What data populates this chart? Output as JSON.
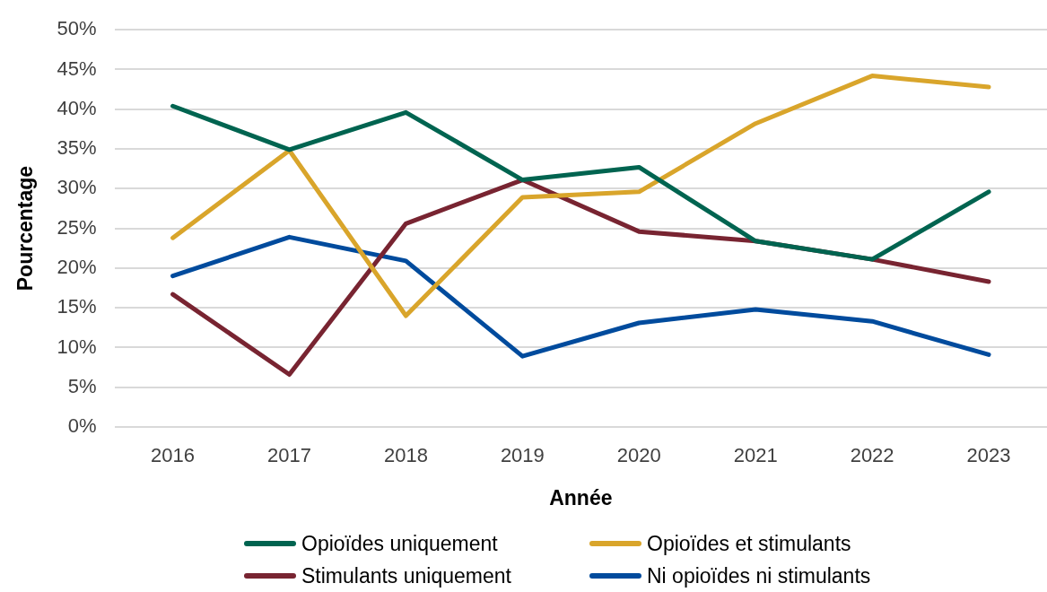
{
  "chart_data": {
    "type": "line",
    "xlabel": "Année",
    "ylabel": "Pourcentage",
    "categories": [
      "2016",
      "2017",
      "2018",
      "2019",
      "2020",
      "2021",
      "2022",
      "2023"
    ],
    "series": [
      {
        "name": "Opioïdes uniquement",
        "color": "#006450",
        "values": [
          40.4,
          34.9,
          39.6,
          31.1,
          32.7,
          23.4,
          21.1,
          29.6
        ]
      },
      {
        "name": "Opioïdes et stimulants",
        "color": "#d9a52b",
        "values": [
          23.8,
          34.8,
          14.0,
          28.9,
          29.6,
          38.2,
          44.2,
          42.8
        ]
      },
      {
        "name": "Stimulants uniquement",
        "color": "#782431",
        "values": [
          16.7,
          6.6,
          25.6,
          31.1,
          24.6,
          23.4,
          21.1,
          18.3
        ]
      },
      {
        "name": "Ni opioïdes ni stimulants",
        "color": "#004b9d",
        "values": [
          19.0,
          23.9,
          20.9,
          8.9,
          13.1,
          14.8,
          13.3,
          9.1
        ]
      }
    ],
    "ylim": [
      0,
      50
    ],
    "yticks": [
      {
        "value": 0,
        "label": "0%"
      },
      {
        "value": 5,
        "label": "5%"
      },
      {
        "value": 10,
        "label": "10%"
      },
      {
        "value": 15,
        "label": "15%"
      },
      {
        "value": 20,
        "label": "20%"
      },
      {
        "value": 25,
        "label": "25%"
      },
      {
        "value": 30,
        "label": "30%"
      },
      {
        "value": 35,
        "label": "35%"
      },
      {
        "value": 40,
        "label": "40%"
      },
      {
        "value": 45,
        "label": "45%"
      },
      {
        "value": 50,
        "label": "50%"
      }
    ],
    "grid": "y",
    "legend": "bottom",
    "marker": "none",
    "line_style": "solid"
  }
}
